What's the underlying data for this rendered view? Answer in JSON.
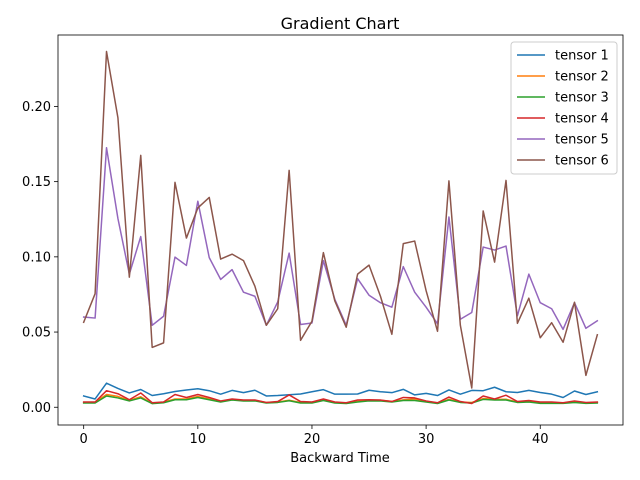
{
  "chart_data": {
    "type": "line",
    "title": "Gradient Chart",
    "xlabel": "Backward Time",
    "ylabel": "",
    "xlim": [
      -2.25,
      47.25
    ],
    "ylim": [
      -0.0118,
      0.2475
    ],
    "xticks": [
      0,
      10,
      20,
      30,
      40
    ],
    "xtick_labels": [
      "0",
      "10",
      "20",
      "30",
      "40"
    ],
    "yticks": [
      0.0,
      0.05,
      0.1,
      0.15,
      0.2
    ],
    "ytick_labels": [
      "0.00",
      "0.05",
      "0.10",
      "0.15",
      "0.20"
    ],
    "grid": false,
    "legend_position": "top-right",
    "x": [
      0,
      1,
      2,
      3,
      4,
      5,
      6,
      7,
      8,
      9,
      10,
      11,
      12,
      13,
      14,
      15,
      16,
      17,
      18,
      19,
      20,
      21,
      22,
      23,
      24,
      25,
      26,
      27,
      28,
      29,
      30,
      31,
      32,
      33,
      34,
      35,
      36,
      37,
      38,
      39,
      40,
      41,
      42,
      43,
      44,
      45
    ],
    "series": [
      {
        "name": "tensor 1",
        "color": "#1f77b4",
        "values": [
          0.0075,
          0.0055,
          0.016,
          0.0125,
          0.0095,
          0.0118,
          0.0078,
          0.009,
          0.0105,
          0.0115,
          0.0123,
          0.011,
          0.0087,
          0.0112,
          0.0097,
          0.0113,
          0.0075,
          0.0078,
          0.0083,
          0.0088,
          0.0103,
          0.0117,
          0.0087,
          0.0087,
          0.0088,
          0.0113,
          0.0103,
          0.0097,
          0.0119,
          0.0082,
          0.0092,
          0.0078,
          0.0115,
          0.0087,
          0.0112,
          0.011,
          0.0133,
          0.0103,
          0.0098,
          0.0112,
          0.0098,
          0.0087,
          0.0065,
          0.0108,
          0.0085,
          0.0103
        ]
      },
      {
        "name": "tensor 2",
        "color": "#ff7f0e",
        "values": [
          0.0032,
          0.0033,
          0.0085,
          0.0072,
          0.0045,
          0.007,
          0.0026,
          0.0034,
          0.0055,
          0.0055,
          0.0072,
          0.0055,
          0.0038,
          0.0052,
          0.0045,
          0.0045,
          0.0032,
          0.0035,
          0.0047,
          0.0032,
          0.0032,
          0.0049,
          0.0032,
          0.0028,
          0.0039,
          0.0045,
          0.0046,
          0.0039,
          0.0049,
          0.0055,
          0.0039,
          0.0028,
          0.0053,
          0.0035,
          0.0032,
          0.0058,
          0.0052,
          0.0053,
          0.0035,
          0.0039,
          0.0029,
          0.0029,
          0.0029,
          0.0035,
          0.0029,
          0.0032
        ]
      },
      {
        "name": "tensor 3",
        "color": "#2ca02c",
        "values": [
          0.0028,
          0.0028,
          0.0075,
          0.0062,
          0.0042,
          0.0062,
          0.0024,
          0.003,
          0.005,
          0.005,
          0.0065,
          0.005,
          0.0035,
          0.0048,
          0.0042,
          0.0042,
          0.0028,
          0.0032,
          0.0043,
          0.0028,
          0.0028,
          0.0045,
          0.0028,
          0.0025,
          0.0035,
          0.0042,
          0.0042,
          0.0035,
          0.0045,
          0.0045,
          0.0035,
          0.0025,
          0.0048,
          0.0032,
          0.0028,
          0.0052,
          0.0048,
          0.0048,
          0.0032,
          0.0035,
          0.0026,
          0.0026,
          0.0026,
          0.0032,
          0.0026,
          0.0028
        ]
      },
      {
        "name": "tensor 4",
        "color": "#d62728",
        "values": [
          0.0035,
          0.0035,
          0.011,
          0.009,
          0.005,
          0.0095,
          0.003,
          0.0035,
          0.0085,
          0.0065,
          0.0085,
          0.0065,
          0.0042,
          0.0055,
          0.0048,
          0.0048,
          0.0032,
          0.0038,
          0.0082,
          0.0038,
          0.0035,
          0.0055,
          0.0035,
          0.003,
          0.0048,
          0.005,
          0.0048,
          0.0038,
          0.0065,
          0.0062,
          0.0042,
          0.003,
          0.0068,
          0.0038,
          0.0025,
          0.0075,
          0.0055,
          0.008,
          0.0038,
          0.0045,
          0.0035,
          0.0035,
          0.003,
          0.0042,
          0.0032,
          0.0035
        ]
      },
      {
        "name": "tensor 5",
        "color": "#9467bd",
        "values": [
          0.06,
          0.0593,
          0.1725,
          0.1255,
          0.0885,
          0.1135,
          0.0545,
          0.0605,
          0.0998,
          0.0943,
          0.137,
          0.0995,
          0.085,
          0.0915,
          0.0765,
          0.0738,
          0.0545,
          0.07,
          0.1025,
          0.055,
          0.056,
          0.0975,
          0.0718,
          0.0545,
          0.0855,
          0.0745,
          0.0695,
          0.0665,
          0.0935,
          0.0765,
          0.0665,
          0.0555,
          0.1265,
          0.0585,
          0.063,
          0.1065,
          0.1045,
          0.1072,
          0.0608,
          0.0885,
          0.0695,
          0.0655,
          0.0518,
          0.0695,
          0.0525,
          0.0575
        ]
      },
      {
        "name": "tensor 6",
        "color": "#8c564b",
        "values": [
          0.0565,
          0.0755,
          0.2365,
          0.1925,
          0.0865,
          0.1675,
          0.0398,
          0.0428,
          0.1495,
          0.1125,
          0.1325,
          0.1395,
          0.0985,
          0.1018,
          0.0975,
          0.0805,
          0.0545,
          0.0655,
          0.1575,
          0.0445,
          0.0572,
          0.1028,
          0.0708,
          0.0532,
          0.0885,
          0.0945,
          0.0738,
          0.0485,
          0.1088,
          0.1105,
          0.0775,
          0.0505,
          0.1505,
          0.0545,
          0.0128,
          0.1305,
          0.0965,
          0.1508,
          0.0558,
          0.0725,
          0.0462,
          0.0562,
          0.0432,
          0.0698,
          0.0212,
          0.0482
        ]
      }
    ]
  }
}
